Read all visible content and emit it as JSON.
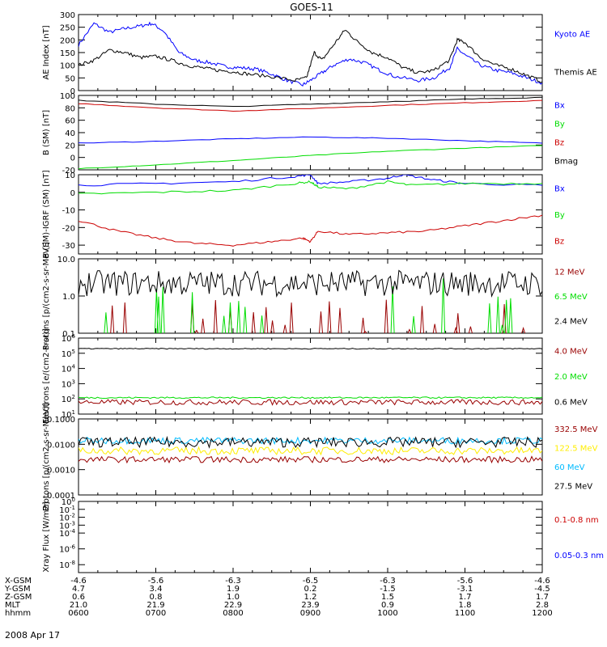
{
  "title": "GOES-11",
  "colors": {
    "black": "#000000",
    "blue": "#0000ff",
    "red": "#cc0000",
    "darkred": "#990000",
    "green": "#00dd00",
    "yellow": "#ffee00",
    "cyan": "#00bbff"
  },
  "footer": {
    "rows": [
      {
        "label": "X-GSM",
        "values": [
          "-4.6",
          "-5.6",
          "-6.3",
          "-6.5",
          "-6.3",
          "-5.6",
          "-4.6"
        ]
      },
      {
        "label": "Y-GSM",
        "values": [
          "4.7",
          "3.4",
          "1.9",
          "0.2",
          "-1.5",
          "-3.1",
          "-4.5"
        ]
      },
      {
        "label": "Z-GSM",
        "values": [
          "0.6",
          "0.8",
          "1.0",
          "1.2",
          "1.5",
          "1.7",
          "1.7"
        ]
      },
      {
        "label": "MLT",
        "values": [
          "21.0",
          "21.9",
          "22.9",
          "23.9",
          "0.9",
          "1.8",
          "2.8"
        ]
      },
      {
        "label": "hhmm",
        "values": [
          "0600",
          "0700",
          "0800",
          "0900",
          "1000",
          "1100",
          "1200"
        ]
      }
    ],
    "date": "2008 Apr 17"
  },
  "chart_data": [
    {
      "type": "line",
      "ylabel": "AE Index [nT]",
      "ylim": [
        0,
        300
      ],
      "yticks": [
        "0",
        "50",
        "100",
        "150",
        "200",
        "250",
        "300"
      ],
      "x": [
        "0600",
        "0700",
        "0800",
        "0900",
        "1000",
        "1100",
        "1200"
      ],
      "series": [
        {
          "name": "Kyoto AE",
          "color": "#0000ff",
          "points": [
            [
              6.0,
              180
            ],
            [
              6.2,
              265
            ],
            [
              6.4,
              230
            ],
            [
              6.6,
              245
            ],
            [
              6.8,
              255
            ],
            [
              6.95,
              265
            ],
            [
              7.1,
              235
            ],
            [
              7.3,
              150
            ],
            [
              7.5,
              120
            ],
            [
              7.7,
              110
            ],
            [
              7.9,
              95
            ],
            [
              8.1,
              90
            ],
            [
              8.3,
              85
            ],
            [
              8.5,
              65
            ],
            [
              8.7,
              40
            ],
            [
              8.9,
              22
            ],
            [
              9.0,
              40
            ],
            [
              9.15,
              70
            ],
            [
              9.3,
              100
            ],
            [
              9.5,
              125
            ],
            [
              9.7,
              110
            ],
            [
              9.9,
              80
            ],
            [
              10.1,
              55
            ],
            [
              10.4,
              40
            ],
            [
              10.6,
              50
            ],
            [
              10.8,
              90
            ],
            [
              10.9,
              165
            ],
            [
              11.0,
              140
            ],
            [
              11.2,
              100
            ],
            [
              11.4,
              80
            ],
            [
              11.6,
              70
            ],
            [
              11.8,
              50
            ],
            [
              12.0,
              30
            ]
          ]
        },
        {
          "name": "Themis AE",
          "color": "#000000",
          "points": [
            [
              6.0,
              100
            ],
            [
              6.2,
              120
            ],
            [
              6.4,
              160
            ],
            [
              6.6,
              150
            ],
            [
              6.8,
              130
            ],
            [
              7.0,
              135
            ],
            [
              7.2,
              120
            ],
            [
              7.4,
              100
            ],
            [
              7.6,
              90
            ],
            [
              7.8,
              80
            ],
            [
              8.0,
              75
            ],
            [
              8.2,
              65
            ],
            [
              8.5,
              55
            ],
            [
              8.8,
              40
            ],
            [
              8.95,
              50
            ],
            [
              9.05,
              150
            ],
            [
              9.15,
              120
            ],
            [
              9.3,
              180
            ],
            [
              9.45,
              240
            ],
            [
              9.6,
              195
            ],
            [
              9.8,
              150
            ],
            [
              10.0,
              130
            ],
            [
              10.2,
              90
            ],
            [
              10.4,
              70
            ],
            [
              10.6,
              80
            ],
            [
              10.8,
              120
            ],
            [
              10.9,
              200
            ],
            [
              11.0,
              190
            ],
            [
              11.2,
              130
            ],
            [
              11.4,
              100
            ],
            [
              11.6,
              85
            ],
            [
              11.8,
              60
            ],
            [
              12.0,
              35
            ]
          ]
        }
      ]
    },
    {
      "type": "line",
      "ylabel": "B (SM) [nT]",
      "ylim": [
        -20,
        100
      ],
      "yticks": [
        "-20",
        "0",
        "20",
        "40",
        "60",
        "80",
        "100"
      ],
      "series": [
        {
          "name": "Bx",
          "color": "#0000ff",
          "points": [
            [
              6.0,
              23
            ],
            [
              7.0,
              26
            ],
            [
              8.0,
              30
            ],
            [
              9.0,
              33
            ],
            [
              10.0,
              31
            ],
            [
              11.0,
              27
            ],
            [
              12.0,
              23
            ]
          ]
        },
        {
          "name": "By",
          "color": "#00dd00",
          "points": [
            [
              6.0,
              -18
            ],
            [
              7.0,
              -12
            ],
            [
              8.0,
              -5
            ],
            [
              9.0,
              3
            ],
            [
              10.0,
              10
            ],
            [
              11.0,
              15
            ],
            [
              12.0,
              19
            ]
          ]
        },
        {
          "name": "Bz",
          "color": "#cc0000",
          "points": [
            [
              6.0,
              87
            ],
            [
              7.0,
              80
            ],
            [
              8.0,
              75
            ],
            [
              9.0,
              79
            ],
            [
              10.0,
              84
            ],
            [
              11.0,
              88
            ],
            [
              12.0,
              92
            ]
          ]
        },
        {
          "name": "Bmag",
          "color": "#000000",
          "points": [
            [
              6.0,
              92
            ],
            [
              7.0,
              86
            ],
            [
              8.0,
              82
            ],
            [
              9.0,
              86
            ],
            [
              10.0,
              90
            ],
            [
              11.0,
              94
            ],
            [
              12.0,
              97
            ]
          ]
        }
      ]
    },
    {
      "type": "line",
      "ylabel": "B (SM)-IGRF (SM) [nT]",
      "ylim": [
        -35,
        10
      ],
      "yticks": [
        "-30",
        "-20",
        "-10",
        "0",
        "10"
      ],
      "series": [
        {
          "name": "Bx",
          "color": "#0000ff",
          "points": [
            [
              6.0,
              4
            ],
            [
              7.0,
              5
            ],
            [
              8.0,
              6
            ],
            [
              8.8,
              9
            ],
            [
              9.0,
              10
            ],
            [
              9.1,
              5
            ],
            [
              9.5,
              6
            ],
            [
              10.0,
              8
            ],
            [
              10.2,
              10
            ],
            [
              10.6,
              7
            ],
            [
              11.0,
              5
            ],
            [
              12.0,
              4
            ]
          ]
        },
        {
          "name": "By",
          "color": "#00dd00",
          "points": [
            [
              6.0,
              -1
            ],
            [
              7.0,
              0
            ],
            [
              8.0,
              1
            ],
            [
              8.8,
              5
            ],
            [
              9.0,
              6
            ],
            [
              9.1,
              3
            ],
            [
              9.5,
              2
            ],
            [
              10.0,
              6
            ],
            [
              10.3,
              4
            ],
            [
              11.0,
              5
            ],
            [
              12.0,
              5
            ]
          ]
        },
        {
          "name": "Bz",
          "color": "#cc0000",
          "points": [
            [
              6.0,
              -16
            ],
            [
              6.5,
              -22
            ],
            [
              7.0,
              -26
            ],
            [
              7.5,
              -29
            ],
            [
              8.0,
              -30
            ],
            [
              8.5,
              -28
            ],
            [
              8.9,
              -26
            ],
            [
              9.0,
              -28
            ],
            [
              9.1,
              -22
            ],
            [
              9.5,
              -24
            ],
            [
              10.0,
              -23
            ],
            [
              10.5,
              -22
            ],
            [
              11.0,
              -19
            ],
            [
              11.5,
              -16
            ],
            [
              12.0,
              -13
            ]
          ]
        }
      ]
    },
    {
      "type": "line",
      "ylabel": "Protons [p/(cm2-s-sr-MeV)]",
      "yscale": "log",
      "ylim": [
        0.1,
        10.0
      ],
      "yticks": [
        "0.1",
        "1.0",
        "10.0"
      ],
      "series": [
        {
          "name": "12 MeV",
          "color": "#990000",
          "mean": 0.11,
          "spread": 0.4,
          "sparse": true
        },
        {
          "name": "6.5 MeV",
          "color": "#00dd00",
          "mean": 0.15,
          "spread": 0.6,
          "sparse": true
        },
        {
          "name": "2.4 MeV",
          "color": "#000000",
          "mean": 2.2,
          "spread": 0.35,
          "sparse": false
        }
      ]
    },
    {
      "type": "line",
      "ylabel": "Electrons [e/(cm2-s-sr)]",
      "yscale": "log",
      "ylim": [
        10,
        1000000
      ],
      "yticks": [
        "10^1",
        "10^2",
        "10^3",
        "10^4",
        "10^5",
        "10^6"
      ],
      "series": [
        {
          "name": "4.0 MeV",
          "color": "#990000",
          "mean": 60,
          "spread": 0.18,
          "sparse": false
        },
        {
          "name": "2.0 MeV",
          "color": "#00dd00",
          "mean": 120,
          "spread": 0.05,
          "sparse": false
        },
        {
          "name": "0.6 MeV",
          "color": "#000000",
          "mean": 200000,
          "spread": 0.03,
          "sparse": false
        }
      ]
    },
    {
      "type": "line",
      "ylabel": "Protons [p/(cm2-s-sr-MeV)]",
      "yscale": "log",
      "ylim": [
        0.0001,
        0.1
      ],
      "yticks": [
        "0.0001",
        "0.0010",
        "0.0100",
        "0.1000"
      ],
      "series": [
        {
          "name": "332.5 MeV",
          "color": "#990000",
          "mean": 0.0025,
          "spread": 0.12,
          "sparse": false
        },
        {
          "name": "122.5 MeV",
          "color": "#ffee00",
          "mean": 0.0055,
          "spread": 0.15,
          "sparse": false
        },
        {
          "name": "60 MeV",
          "color": "#00bbff",
          "mean": 0.014,
          "spread": 0.13,
          "sparse": false
        },
        {
          "name": "27.5 MeV",
          "color": "#000000",
          "mean": 0.012,
          "spread": 0.2,
          "sparse": false
        }
      ]
    },
    {
      "type": "line",
      "ylabel": "Xray Flux [W/m2]",
      "yscale": "log",
      "ylim": [
        1e-09,
        1
      ],
      "yticks": [
        "10^-8",
        "10^-6",
        "10^-4",
        "10^-3",
        "10^-2",
        "10^-1",
        "10^0"
      ],
      "series": [
        {
          "name": "0.1-0.8 nm",
          "color": "#cc0000"
        },
        {
          "name": "0.05-0.3 nm",
          "color": "#0000ff"
        }
      ]
    }
  ]
}
